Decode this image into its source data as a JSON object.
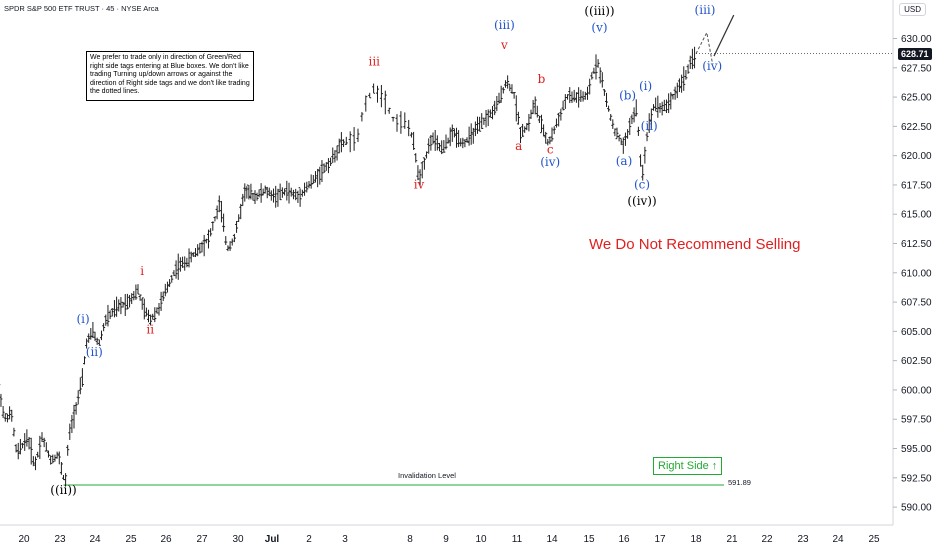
{
  "header": {
    "title": "SPDR S&P 500 ETF TRUST · 45 · NYSE Arca",
    "currency": "USD"
  },
  "note": "We prefer to trade only in direction of Green/Red right side tags entering at Blue boxes. We don't like trading Turning up/down arrows or against the direction of Right side tags and we don't like trading the dotted lines.",
  "headline": "We Do Not Recommend Selling",
  "right_side_tag": "Right Side ↑",
  "invalidation": {
    "label": "Invalidation Level",
    "value": "591.89"
  },
  "colors": {
    "red": "#e02020",
    "blue": "#2255cc",
    "black": "#000000",
    "green": "#22aa33",
    "price_tag_bg": "#131722"
  },
  "chart_data": {
    "type": "line",
    "instrument": "SPDR S&P 500 ETF TRUST",
    "timeframe": "45",
    "exchange": "NYSE Arca",
    "last_price": "628.71",
    "y_ticks": [
      "630.00",
      "627.50",
      "625.00",
      "622.50",
      "620.00",
      "617.50",
      "615.00",
      "612.50",
      "610.00",
      "607.50",
      "605.00",
      "602.50",
      "600.00",
      "597.50",
      "595.00",
      "592.50",
      "590.00"
    ],
    "ylim": [
      589,
      632
    ],
    "x_ticks": [
      {
        "label": "20",
        "t": 0
      },
      {
        "label": "23",
        "t": 1
      },
      {
        "label": "24",
        "t": 2
      },
      {
        "label": "25",
        "t": 3
      },
      {
        "label": "26",
        "t": 4
      },
      {
        "label": "27",
        "t": 5
      },
      {
        "label": "30",
        "t": 6
      },
      {
        "label": "Jul",
        "t": 7
      },
      {
        "label": "2",
        "t": 8
      },
      {
        "label": "3",
        "t": 9
      },
      {
        "label": "8",
        "t": 10
      },
      {
        "label": "9",
        "t": 11
      },
      {
        "label": "10",
        "t": 12
      },
      {
        "label": "11",
        "t": 13
      },
      {
        "label": "14",
        "t": 14
      },
      {
        "label": "15",
        "t": 15
      },
      {
        "label": "16",
        "t": 16
      },
      {
        "label": "17",
        "t": 17
      },
      {
        "label": "18",
        "t": 18
      },
      {
        "label": "21",
        "t": 19
      },
      {
        "label": "22",
        "t": 20
      },
      {
        "label": "23",
        "t": 21
      },
      {
        "label": "24",
        "t": 22
      },
      {
        "label": "25",
        "t": 23
      }
    ],
    "price_path": [
      [
        -0.7,
        600.5
      ],
      [
        -0.55,
        597.5
      ],
      [
        -0.35,
        598
      ],
      [
        -0.2,
        594.5
      ],
      [
        0.1,
        596
      ],
      [
        0.3,
        593.5
      ],
      [
        0.5,
        596
      ],
      [
        0.75,
        594
      ],
      [
        0.95,
        594.5
      ],
      [
        1.15,
        591.9
      ],
      [
        1.25,
        596
      ],
      [
        1.45,
        598.5
      ],
      [
        1.65,
        601
      ],
      [
        1.75,
        604
      ],
      [
        1.95,
        605
      ],
      [
        2.1,
        603.8
      ],
      [
        2.3,
        606
      ],
      [
        2.6,
        607
      ],
      [
        2.9,
        607.5
      ],
      [
        3.2,
        608.5
      ],
      [
        3.35,
        607
      ],
      [
        3.55,
        606
      ],
      [
        3.8,
        607
      ],
      [
        4.0,
        608.5
      ],
      [
        4.3,
        610.5
      ],
      [
        4.6,
        611
      ],
      [
        4.9,
        612
      ],
      [
        5.2,
        613
      ],
      [
        5.5,
        616
      ],
      [
        5.7,
        612
      ],
      [
        5.9,
        613
      ],
      [
        6.2,
        617
      ],
      [
        6.5,
        616.5
      ],
      [
        6.8,
        617
      ],
      [
        7.1,
        616.5
      ],
      [
        7.4,
        617
      ],
      [
        7.7,
        616.5
      ],
      [
        8.0,
        617.5
      ],
      [
        8.3,
        618.5
      ],
      [
        8.6,
        619.5
      ],
      [
        8.9,
        621
      ],
      [
        9.2,
        621.5
      ],
      [
        9.3,
        624.5
      ],
      [
        9.45,
        625.7
      ],
      [
        9.6,
        625
      ],
      [
        9.75,
        623
      ],
      [
        9.95,
        622.8
      ],
      [
        10.1,
        621
      ],
      [
        10.25,
        618
      ],
      [
        10.4,
        619.5
      ],
      [
        10.6,
        621.5
      ],
      [
        10.9,
        620.5
      ],
      [
        11.2,
        622
      ],
      [
        11.5,
        621
      ],
      [
        11.8,
        622
      ],
      [
        12.1,
        623
      ],
      [
        12.4,
        624
      ],
      [
        12.7,
        626.3
      ],
      [
        12.9,
        625.5
      ],
      [
        13.1,
        622
      ],
      [
        13.3,
        622.5
      ],
      [
        13.5,
        624.5
      ],
      [
        13.7,
        622.5
      ],
      [
        13.9,
        621
      ],
      [
        14.1,
        622.5
      ],
      [
        14.4,
        625
      ],
      [
        14.7,
        625
      ],
      [
        14.95,
        625
      ],
      [
        15.1,
        627
      ],
      [
        15.25,
        628
      ],
      [
        15.4,
        626
      ],
      [
        15.55,
        624
      ],
      [
        15.75,
        622
      ],
      [
        16.0,
        620.8
      ],
      [
        16.2,
        623
      ],
      [
        16.35,
        624
      ],
      [
        16.5,
        618
      ],
      [
        16.65,
        622
      ],
      [
        16.85,
        624.5
      ],
      [
        17.05,
        624
      ],
      [
        17.25,
        624.5
      ],
      [
        17.45,
        625.5
      ],
      [
        17.65,
        626.5
      ],
      [
        17.85,
        627.8
      ],
      [
        18.0,
        628.71
      ]
    ],
    "projection": [
      [
        18.0,
        628.71
      ],
      [
        18.3,
        630.5
      ],
      [
        18.45,
        628
      ]
    ],
    "arrow": {
      "from": [
        18.5,
        628.5
      ],
      "to": [
        19.05,
        632
      ]
    },
    "wave_labels": [
      {
        "text": "((ii))",
        "t": 1.1,
        "y": 591.1,
        "color": "black"
      },
      {
        "text": "(i)",
        "t": 1.66,
        "y": 605.7,
        "color": "blue"
      },
      {
        "text": "(ii)",
        "t": 1.98,
        "y": 602.9,
        "color": "blue"
      },
      {
        "text": "i",
        "t": 3.32,
        "y": 609.8,
        "color": "red"
      },
      {
        "text": "ii",
        "t": 3.55,
        "y": 604.8,
        "color": "red"
      },
      {
        "text": "iii",
        "t": 9.45,
        "y": 627.7,
        "color": "red"
      },
      {
        "text": "iv",
        "t": 10.25,
        "y": 617.2,
        "color": "red"
      },
      {
        "text": "(iii)",
        "t": 12.65,
        "y": 630.8,
        "color": "blue"
      },
      {
        "text": "v",
        "t": 12.65,
        "y": 629.1,
        "color": "red"
      },
      {
        "text": "a",
        "t": 13.05,
        "y": 620.5,
        "color": "red"
      },
      {
        "text": "b",
        "t": 13.7,
        "y": 626.2,
        "color": "red"
      },
      {
        "text": "c",
        "t": 13.95,
        "y": 620.2,
        "color": "red"
      },
      {
        "text": "(iv)",
        "t": 13.95,
        "y": 619.1,
        "color": "blue"
      },
      {
        "text": "((iii))",
        "t": 15.3,
        "y": 632.0,
        "color": "black"
      },
      {
        "text": "(v)",
        "t": 15.3,
        "y": 630.6,
        "color": "blue"
      },
      {
        "text": "(b)",
        "t": 16.1,
        "y": 624.8,
        "color": "blue"
      },
      {
        "text": "(i)",
        "t": 16.6,
        "y": 625.6,
        "color": "blue"
      },
      {
        "text": "(ii)",
        "t": 16.7,
        "y": 622.2,
        "color": "blue"
      },
      {
        "text": "(a)",
        "t": 16.0,
        "y": 619.2,
        "color": "blue"
      },
      {
        "text": "(c)",
        "t": 16.5,
        "y": 617.2,
        "color": "blue"
      },
      {
        "text": "((iv))",
        "t": 16.5,
        "y": 615.8,
        "color": "black"
      },
      {
        "text": "(iii)",
        "t": 18.25,
        "y": 632.1,
        "color": "blue"
      },
      {
        "text": "(iv)",
        "t": 18.45,
        "y": 627.3,
        "color": "blue"
      }
    ]
  }
}
